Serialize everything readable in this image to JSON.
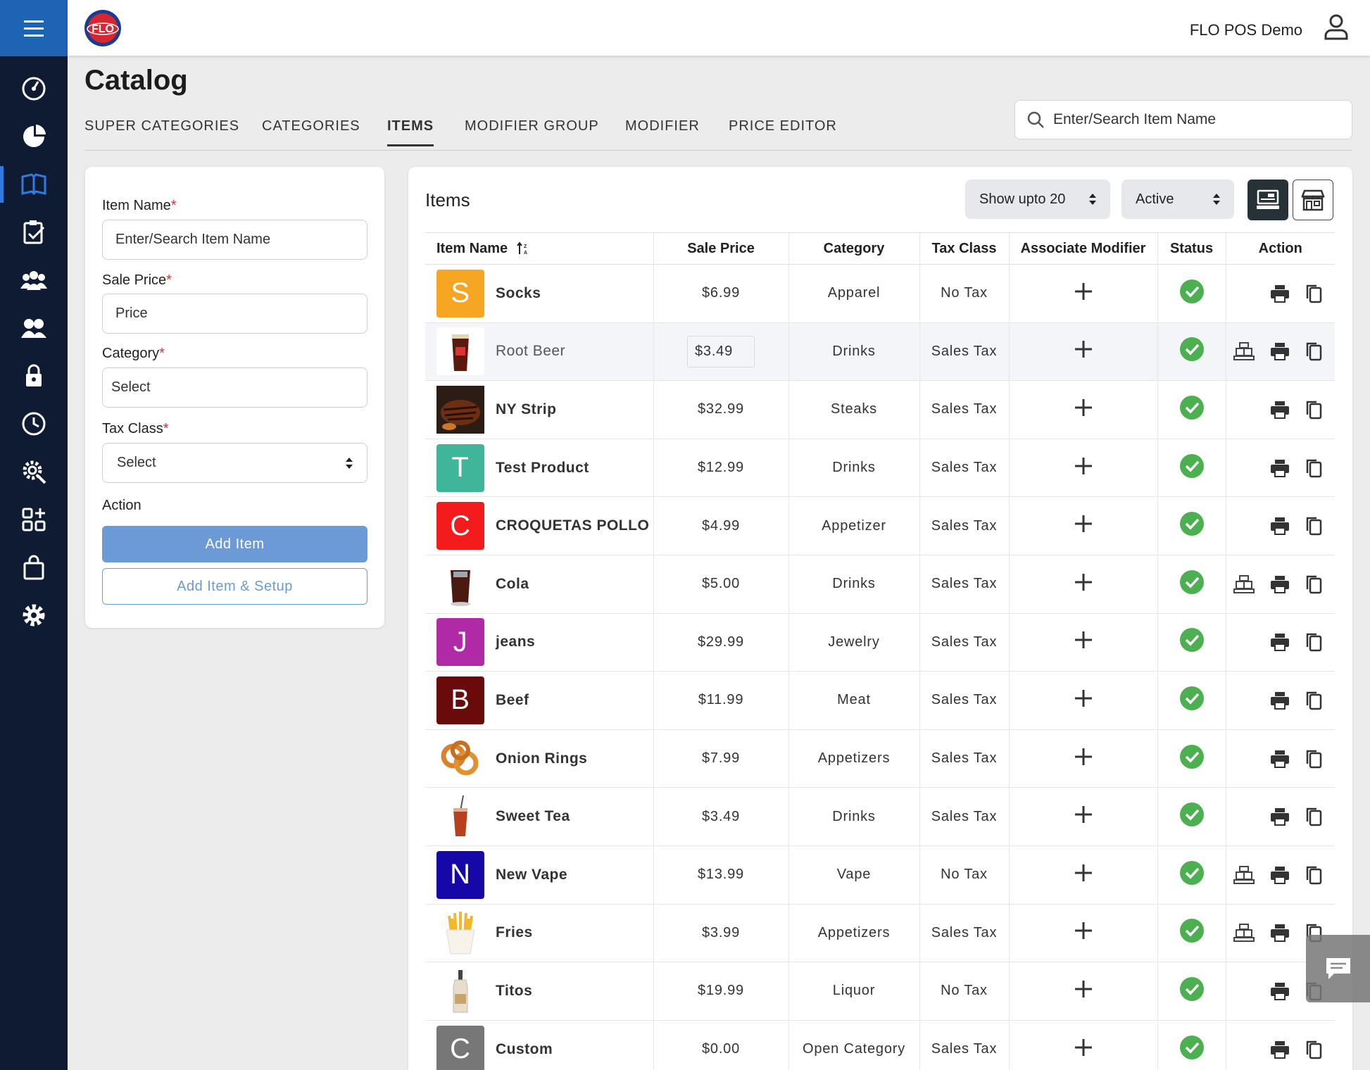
{
  "app": {
    "user_name": "FLO POS Demo",
    "logo_text": "FLO"
  },
  "sidebar": {
    "items": [
      {
        "icon": "dashboard-icon"
      },
      {
        "icon": "pie-chart-icon"
      },
      {
        "icon": "catalog-book-icon",
        "active": true
      },
      {
        "icon": "clipboard-check-icon"
      },
      {
        "icon": "customers-icon"
      },
      {
        "icon": "employees-icon"
      },
      {
        "icon": "lock-icon"
      },
      {
        "icon": "clock-icon"
      },
      {
        "icon": "gear-search-icon"
      },
      {
        "icon": "add-apps-icon"
      },
      {
        "icon": "shopping-bag-icon"
      },
      {
        "icon": "settings-icon"
      }
    ]
  },
  "page": {
    "title": "Catalog"
  },
  "tabs": [
    {
      "label": "SUPER CATEGORIES"
    },
    {
      "label": "CATEGORIES"
    },
    {
      "label": "ITEMS",
      "active": true
    },
    {
      "label": "MODIFIER GROUP"
    },
    {
      "label": "MODIFIER"
    },
    {
      "label": "PRICE EDITOR"
    }
  ],
  "search": {
    "placeholder": "Enter/Search Item Name"
  },
  "form": {
    "item_name_label": "Item Name",
    "item_name_placeholder": "Enter/Search Item Name",
    "sale_price_label": "Sale Price",
    "sale_price_placeholder": "Price",
    "category_label": "Category",
    "category_value": "Select",
    "tax_class_label": "Tax Class",
    "tax_class_value": "Select",
    "required_mark": "*",
    "action_label": "Action",
    "add_item_label": "Add Item",
    "add_item_setup_label": "Add Item & Setup"
  },
  "items_panel": {
    "title": "Items",
    "show_select": "Show upto 20",
    "status_select": "Active"
  },
  "table": {
    "headers": [
      "Item Name",
      "Sale Price",
      "Category",
      "Tax Class",
      "Associate Modifier",
      "Status",
      "Action"
    ],
    "rows": [
      {
        "name": "Socks",
        "price": "$6.99",
        "category": "Apparel",
        "tax": "No Tax",
        "thumb": "S",
        "color": "#f6a623",
        "kitchen": false
      },
      {
        "name": "Root Beer",
        "price": "$3.49",
        "category": "Drinks",
        "tax": "Sales Tax",
        "thumb": "img-rootbeer",
        "kitchen": true,
        "highlight": true
      },
      {
        "name": "NY Strip",
        "price": "$32.99",
        "category": "Steaks",
        "tax": "Sales Tax",
        "thumb": "img-steak",
        "kitchen": false
      },
      {
        "name": "Test Product",
        "price": "$12.99",
        "category": "Drinks",
        "tax": "Sales Tax",
        "thumb": "T",
        "color": "#3fb59a",
        "kitchen": false
      },
      {
        "name": "CROQUETAS POLLO",
        "price": "$4.99",
        "category": "Appetizer",
        "tax": "Sales Tax",
        "thumb": "C",
        "color": "#f31b1b",
        "kitchen": false
      },
      {
        "name": "Cola",
        "price": "$5.00",
        "category": "Drinks",
        "tax": "Sales Tax",
        "thumb": "img-cola",
        "kitchen": true
      },
      {
        "name": "jeans",
        "price": "$29.99",
        "category": "Jewelry",
        "tax": "Sales Tax",
        "thumb": "J",
        "color": "#b02aa8",
        "kitchen": false
      },
      {
        "name": "Beef",
        "price": "$11.99",
        "category": "Meat",
        "tax": "Sales Tax",
        "thumb": "B",
        "color": "#6b0a0a",
        "kitchen": false
      },
      {
        "name": "Onion Rings",
        "price": "$7.99",
        "category": "Appetizers",
        "tax": "Sales Tax",
        "thumb": "img-rings",
        "kitchen": false
      },
      {
        "name": "Sweet Tea",
        "price": "$3.49",
        "category": "Drinks",
        "tax": "Sales Tax",
        "thumb": "img-tea",
        "kitchen": false
      },
      {
        "name": "New Vape",
        "price": "$13.99",
        "category": "Vape",
        "tax": "No Tax",
        "thumb": "N",
        "color": "#1608a8",
        "kitchen": true
      },
      {
        "name": "Fries",
        "price": "$3.99",
        "category": "Appetizers",
        "tax": "Sales Tax",
        "thumb": "img-fries",
        "kitchen": true
      },
      {
        "name": "Titos",
        "price": "$19.99",
        "category": "Liquor",
        "tax": "No Tax",
        "thumb": "img-titos",
        "kitchen": false
      },
      {
        "name": "Custom",
        "price": "$0.00",
        "category": "Open Category",
        "tax": "Sales Tax",
        "thumb": "C",
        "color": "#777777",
        "kitchen": false
      }
    ]
  }
}
